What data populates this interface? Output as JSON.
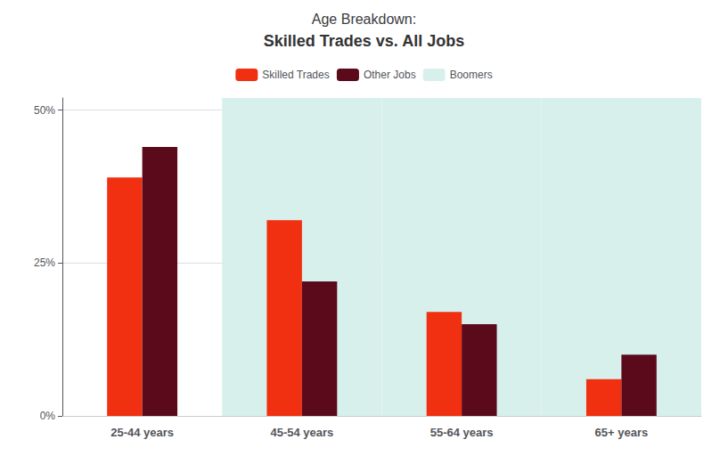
{
  "chart_data": {
    "type": "bar",
    "title": "Age Breakdown:",
    "subtitle": "Skilled Trades vs. All Jobs",
    "categories": [
      "25-44 years",
      "45-54 years",
      "55-64 years",
      "65+ years"
    ],
    "series": [
      {
        "name": "Skilled Trades",
        "color": "#F03010",
        "values": [
          0.39,
          0.32,
          0.17,
          0.06
        ]
      },
      {
        "name": "Other Jobs",
        "color": "#5A0A1A",
        "values": [
          0.44,
          0.22,
          0.15,
          0.1
        ]
      },
      {
        "name": "Boomers",
        "type": "band",
        "color": "#D8F0EC",
        "values": [
          null,
          0.52,
          0.52,
          0.52
        ]
      }
    ],
    "ylim": [
      0,
      0.52
    ],
    "yticks": [
      {
        "value": 0.0,
        "label": "0%"
      },
      {
        "value": 0.25,
        "label": "25%"
      },
      {
        "value": 0.5,
        "label": "50%"
      }
    ],
    "grid": true,
    "legend": "top"
  }
}
